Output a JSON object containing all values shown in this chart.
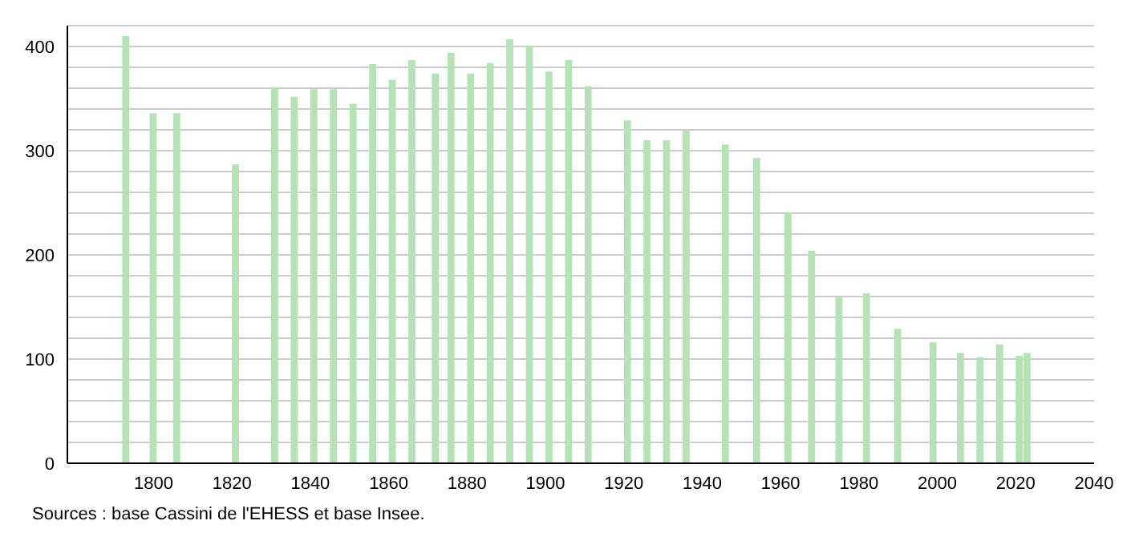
{
  "chart_data": {
    "type": "bar",
    "x": [
      1793,
      1800,
      1806,
      1821,
      1831,
      1836,
      1841,
      1846,
      1851,
      1856,
      1861,
      1866,
      1872,
      1876,
      1881,
      1886,
      1891,
      1896,
      1901,
      1906,
      1911,
      1921,
      1926,
      1931,
      1936,
      1946,
      1954,
      1962,
      1968,
      1975,
      1982,
      1990,
      1999,
      2006,
      2011,
      2016,
      2021,
      2023
    ],
    "values": [
      410,
      336,
      336,
      287,
      361,
      352,
      359,
      359,
      345,
      383,
      368,
      387,
      374,
      394,
      374,
      384,
      407,
      401,
      376,
      387,
      362,
      329,
      310,
      310,
      319,
      306,
      293,
      241,
      204,
      159,
      163,
      129,
      116,
      106,
      102,
      114,
      103,
      106
    ],
    "color": "#b5e3b5",
    "xlim": [
      1778,
      2040
    ],
    "xticks": [
      1800,
      1820,
      1840,
      1860,
      1880,
      1900,
      1920,
      1940,
      1960,
      1980,
      2000,
      2020,
      2040
    ],
    "ylim": [
      0,
      420
    ],
    "yticks": [
      0,
      {
        "value": 20,
        "label": null
      },
      {
        "value": 40,
        "label": null
      },
      {
        "value": 60,
        "label": null
      },
      {
        "value": 80,
        "label": null
      },
      100,
      {
        "value": 120,
        "label": null
      },
      {
        "value": 140,
        "label": null
      },
      {
        "value": 160,
        "label": null
      },
      {
        "value": 180,
        "label": null
      },
      200,
      {
        "value": 220,
        "label": null
      },
      {
        "value": 240,
        "label": null
      },
      {
        "value": 260,
        "label": null
      },
      {
        "value": 280,
        "label": null
      },
      300,
      {
        "value": 320,
        "label": null
      },
      {
        "value": 340,
        "label": null
      },
      {
        "value": 360,
        "label": null
      },
      {
        "value": 380,
        "label": null
      },
      400,
      {
        "value": 420,
        "label": null
      }
    ],
    "grid": "y",
    "annotations": [
      "Sources : base Cassini de l'EHESS et base Insee."
    ]
  }
}
